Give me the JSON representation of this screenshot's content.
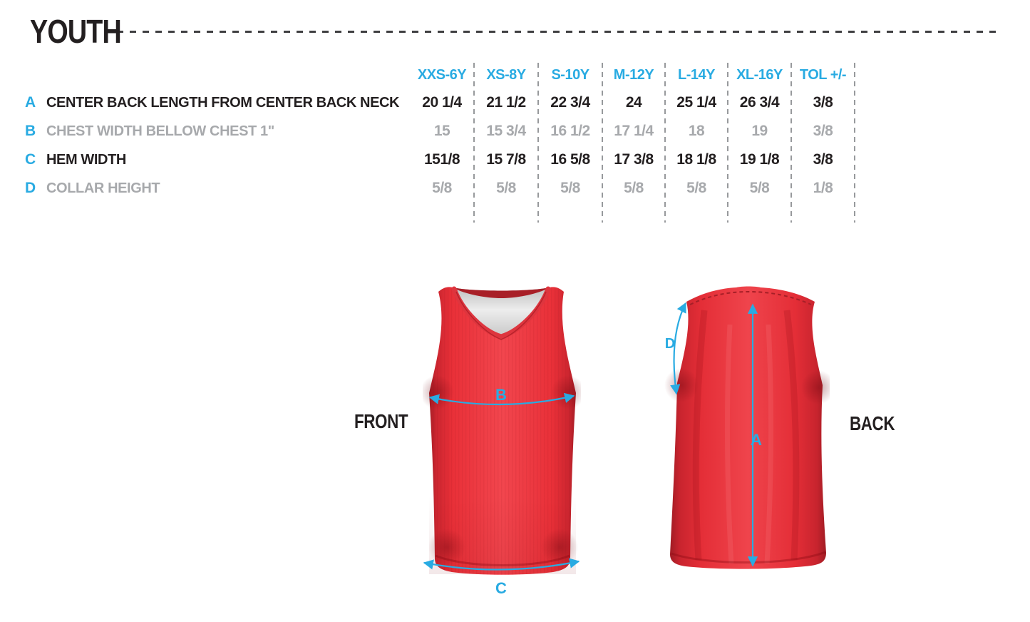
{
  "title": "YOUTH",
  "table": {
    "columns": [
      "XXS-6Y",
      "XS-8Y",
      "S-10Y",
      "M-12Y",
      "L-14Y",
      "XL-16Y",
      "TOL +/-"
    ],
    "rows": [
      {
        "letter": "A",
        "label": "CENTER BACK LENGTH FROM CENTER BACK NECK",
        "tone": "dark",
        "values": [
          "20 1/4",
          "21 1/2",
          "22 3/4",
          "24",
          "25 1/4",
          "26 3/4",
          "3/8"
        ]
      },
      {
        "letter": "B",
        "label": "CHEST WIDTH BELLOW CHEST 1\"",
        "tone": "light",
        "values": [
          "15",
          "15 3/4",
          "16 1/2",
          "17 1/4",
          "18",
          "19",
          "3/8"
        ]
      },
      {
        "letter": "C",
        "label": "HEM WIDTH",
        "tone": "dark",
        "values": [
          "151/8",
          "15 7/8",
          "16 5/8",
          "17 3/8",
          "18 1/8",
          "19 1/8",
          "3/8"
        ]
      },
      {
        "letter": "D",
        "label": "COLLAR HEIGHT",
        "tone": "light",
        "values": [
          "5/8",
          "5/8",
          "5/8",
          "5/8",
          "5/8",
          "5/8",
          "1/8"
        ]
      }
    ]
  },
  "garment": {
    "front_label": "FRONT",
    "back_label": "BACK",
    "measure_labels": {
      "front_chest": "B",
      "front_hem": "C",
      "back_length": "A",
      "back_collar": "D"
    }
  },
  "chart_data": {
    "type": "table",
    "title": "YOUTH",
    "columns": [
      "XXS-6Y",
      "XS-8Y",
      "S-10Y",
      "M-12Y",
      "L-14Y",
      "XL-16Y",
      "TOL +/-"
    ],
    "rows": [
      {
        "measure": "A - CENTER BACK LENGTH FROM CENTER BACK NECK",
        "values": [
          "20 1/4",
          "21 1/2",
          "22 3/4",
          "24",
          "25 1/4",
          "26 3/4",
          "3/8"
        ]
      },
      {
        "measure": "B - CHEST WIDTH BELLOW CHEST 1\"",
        "values": [
          "15",
          "15 3/4",
          "16 1/2",
          "17 1/4",
          "18",
          "19",
          "3/8"
        ]
      },
      {
        "measure": "C - HEM WIDTH",
        "values": [
          "151/8",
          "15 7/8",
          "16 5/8",
          "17 3/8",
          "18 1/8",
          "19 1/8",
          "3/8"
        ]
      },
      {
        "measure": "D - COLLAR HEIGHT",
        "values": [
          "5/8",
          "5/8",
          "5/8",
          "5/8",
          "5/8",
          "5/8",
          "1/8"
        ]
      }
    ]
  },
  "colors": {
    "accent_blue": "#29ABE2",
    "text_dark": "#231F20",
    "text_gray": "#A7A9AC",
    "separator_gray": "#97999C",
    "shirt_red": "#E93038",
    "shirt_red_shadow": "#A81E26",
    "collar_lining_gray": "#DCDCDC"
  }
}
